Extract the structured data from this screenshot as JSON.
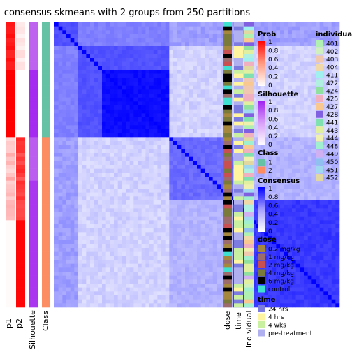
{
  "chart_data": {
    "type": "heatmap",
    "title": "consensus skmeans with 2 groups from 250 partitions",
    "n_samples": 72,
    "group_split_index": 29,
    "annotation_columns_left": [
      "p1",
      "p2",
      "Silhouette",
      "Class"
    ],
    "annotation_columns_right": [
      "dose",
      "time",
      "individual"
    ],
    "legends": {
      "prob": {
        "title": "Prob",
        "ticks": [
          "1",
          "0.8",
          "0.6",
          "0.4",
          "0.2",
          "0"
        ],
        "gradient": [
          "#ff0000",
          "#ffffff"
        ]
      },
      "silhouette": {
        "title": "Silhouette",
        "ticks": [
          "1",
          "0.8",
          "0.6",
          "0.4",
          "0.2",
          "0"
        ],
        "gradient": [
          "#a020f0",
          "#ffffff"
        ]
      },
      "class": {
        "title": "Class",
        "items": [
          {
            "label": "1",
            "color": "#66c2a5"
          },
          {
            "label": "2",
            "color": "#fc8d62"
          }
        ]
      },
      "consensus": {
        "title": "Consensus",
        "ticks": [
          "1",
          "0.8",
          "0.6",
          "0.4",
          "0.2",
          "0"
        ],
        "gradient": [
          "#0000ff",
          "#ffffff"
        ]
      },
      "dose": {
        "title": "dose",
        "items": [
          {
            "label": "0.2 mg/kg",
            "color": "#a6873e"
          },
          {
            "label": "1 mg/kg",
            "color": "#9c6b6b"
          },
          {
            "label": "2 mg/kg",
            "color": "#c85050"
          },
          {
            "label": "4 mg/kg",
            "color": "#7a7a3a"
          },
          {
            "label": "6 mg/kg",
            "color": "#000000"
          },
          {
            "label": "control",
            "color": "#40e0d0"
          }
        ]
      },
      "time": {
        "title": "time",
        "items": [
          {
            "label": "24 hrs",
            "color": "#7b7be0"
          },
          {
            "label": "4 hrs",
            "color": "#fff5a0"
          },
          {
            "label": "4 wks",
            "color": "#c8f0a0"
          },
          {
            "label": "pre-treatment",
            "color": "#b0b0f0"
          }
        ]
      },
      "individual": {
        "title": "individual",
        "items": [
          {
            "label": "401",
            "color": "#b0f0b0"
          },
          {
            "label": "402",
            "color": "#d0f0c0"
          },
          {
            "label": "403",
            "color": "#f0c8b0"
          },
          {
            "label": "404",
            "color": "#f0d8a8"
          },
          {
            "label": "411",
            "color": "#a0f0f0"
          },
          {
            "label": "422",
            "color": "#b0f0e0"
          },
          {
            "label": "424",
            "color": "#90e0a0"
          },
          {
            "label": "425",
            "color": "#f0b0c0"
          },
          {
            "label": "427",
            "color": "#f8c890"
          },
          {
            "label": "428",
            "color": "#8060e0"
          },
          {
            "label": "441",
            "color": "#80e0b0"
          },
          {
            "label": "443",
            "color": "#e0f0a0"
          },
          {
            "label": "444",
            "color": "#f0f0b0"
          },
          {
            "label": "448",
            "color": "#a0f0d0"
          },
          {
            "label": "449",
            "color": "#d0b0f0"
          },
          {
            "label": "450",
            "color": "#90c0f0"
          },
          {
            "label": "451",
            "color": "#a0d8f0"
          },
          {
            "label": "452",
            "color": "#e0d8a0"
          }
        ]
      }
    }
  }
}
